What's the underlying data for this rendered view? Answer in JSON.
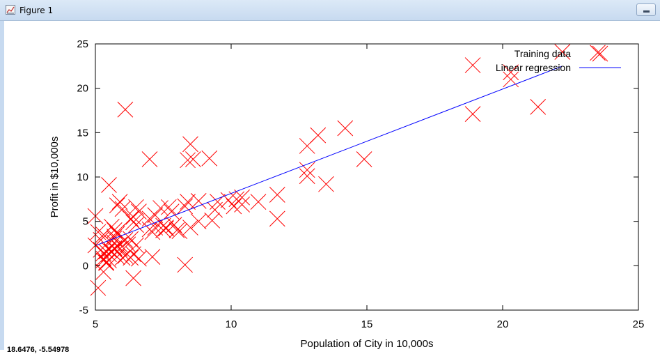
{
  "window": {
    "title": "Figure 1",
    "icon": "figure-icon"
  },
  "status": {
    "coordinates": "18.6476, -5.54978"
  },
  "chart_data": {
    "type": "scatter",
    "xlabel": "Population of City in 10,000s",
    "ylabel": "Profit in $10,000s",
    "xlim": [
      5,
      25
    ],
    "ylim": [
      -5,
      25
    ],
    "xticks": [
      5,
      10,
      15,
      20,
      25
    ],
    "yticks": [
      -5,
      0,
      5,
      10,
      15,
      20,
      25
    ],
    "grid": false,
    "legend": {
      "placement": "top-right"
    },
    "series": [
      {
        "name": "Training data",
        "kind": "scatter",
        "marker": "x",
        "color": "#ff0000",
        "points": [
          [
            6.1,
            17.6
          ],
          [
            5.5,
            9.1
          ],
          [
            8.5,
            13.7
          ],
          [
            7.0,
            12.0
          ],
          [
            5.8,
            6.8
          ],
          [
            8.4,
            11.9
          ],
          [
            7.5,
            4.0
          ],
          [
            8.6,
            12.0
          ],
          [
            6.5,
            6.6
          ],
          [
            5.1,
            3.8
          ],
          [
            5.7,
            3.3
          ],
          [
            14.2,
            15.5
          ],
          [
            5.7,
            3.1
          ],
          [
            8.4,
            7.2
          ],
          [
            6.4,
            -1.4
          ],
          [
            5.6,
            1.6
          ],
          [
            6.5,
            4.6
          ],
          [
            5.3,
            0.8
          ],
          [
            5.8,
            3.6
          ],
          [
            7.2,
            4.3
          ],
          [
            5.1,
            -2.5
          ],
          [
            6.0,
            0.9
          ],
          [
            8.8,
            5.0
          ],
          [
            5.6,
            4.4
          ],
          [
            12.8,
            10.1
          ],
          [
            6.4,
            5.5
          ],
          [
            5.3,
            0.6
          ],
          [
            6.3,
            5.3
          ],
          [
            7.6,
            4.2
          ],
          [
            6.4,
            1.3
          ],
          [
            7.1,
            1.0
          ],
          [
            5.3,
            1.4
          ],
          [
            7.5,
            4.5
          ],
          [
            7.0,
            4.1
          ],
          [
            6.3,
            0.9
          ],
          [
            9.2,
            12.1
          ],
          [
            8.1,
            3.9
          ],
          [
            13.5,
            9.2
          ],
          [
            5.4,
            1.6
          ],
          [
            5.5,
            0.6
          ],
          [
            5.4,
            0.3
          ],
          [
            5.2,
            2.9
          ],
          [
            5.9,
            2.4
          ],
          [
            6.3,
            3.0
          ],
          [
            6.6,
            0.8
          ],
          [
            7.7,
            6.6
          ],
          [
            5.8,
            3.8
          ],
          [
            6.1,
            2.9
          ],
          [
            9.3,
            5.1
          ],
          [
            8.3,
            0.1
          ],
          [
            5.7,
            2.6
          ],
          [
            6.5,
            2.3
          ],
          [
            7.1,
            3.8
          ],
          [
            5.5,
            1.3
          ],
          [
            12.8,
            13.5
          ],
          [
            13.2,
            14.7
          ],
          [
            10.1,
            6.7
          ],
          [
            5.0,
            2.3
          ],
          [
            9.5,
            7.2
          ],
          [
            6.4,
            4.9
          ],
          [
            7.4,
            6.5
          ],
          [
            8.0,
            4.0
          ],
          [
            6.1,
            1.1
          ],
          [
            5.3,
            -0.7
          ],
          [
            7.9,
            4.6
          ],
          [
            6.6,
            6.1
          ],
          [
            9.4,
            6.3
          ],
          [
            5.3,
            3.5
          ],
          [
            7.6,
            4.3
          ],
          [
            5.7,
            4.0
          ],
          [
            11.7,
            8.0
          ],
          [
            5.0,
            5.6
          ],
          [
            7.0,
            5.3
          ],
          [
            8.3,
            6.7
          ],
          [
            5.8,
            1.0
          ],
          [
            6.2,
            2.4
          ],
          [
            8.5,
            4.3
          ],
          [
            9.9,
            7.4
          ],
          [
            10.4,
            6.9
          ],
          [
            5.2,
            1.8
          ],
          [
            5.5,
            1.8
          ],
          [
            5.9,
            1.9
          ],
          [
            5.7,
            2.0
          ],
          [
            5.4,
            0.4
          ],
          [
            18.9,
            22.6
          ],
          [
            22.2,
            24.1
          ],
          [
            20.3,
            21.8
          ],
          [
            18.9,
            17.1
          ],
          [
            21.3,
            17.9
          ],
          [
            20.3,
            21.0
          ],
          [
            23.5,
            24.0
          ],
          [
            14.9,
            12.0
          ],
          [
            11.7,
            5.3
          ],
          [
            10.2,
            7.5
          ],
          [
            11.0,
            7.2
          ],
          [
            12.8,
            10.8
          ],
          [
            7.2,
            5.7
          ],
          [
            5.9,
            7.2
          ],
          [
            6.0,
            6.4
          ],
          [
            7.8,
            6.1
          ],
          [
            8.8,
            7.3
          ],
          [
            10.4,
            7.7
          ],
          [
            5.7,
            1.9
          ]
        ]
      },
      {
        "name": "Linear regression",
        "kind": "line",
        "color": "#0000ff",
        "points": [
          [
            5.03,
            2.3
          ],
          [
            22.2,
            22.5
          ]
        ]
      }
    ]
  }
}
